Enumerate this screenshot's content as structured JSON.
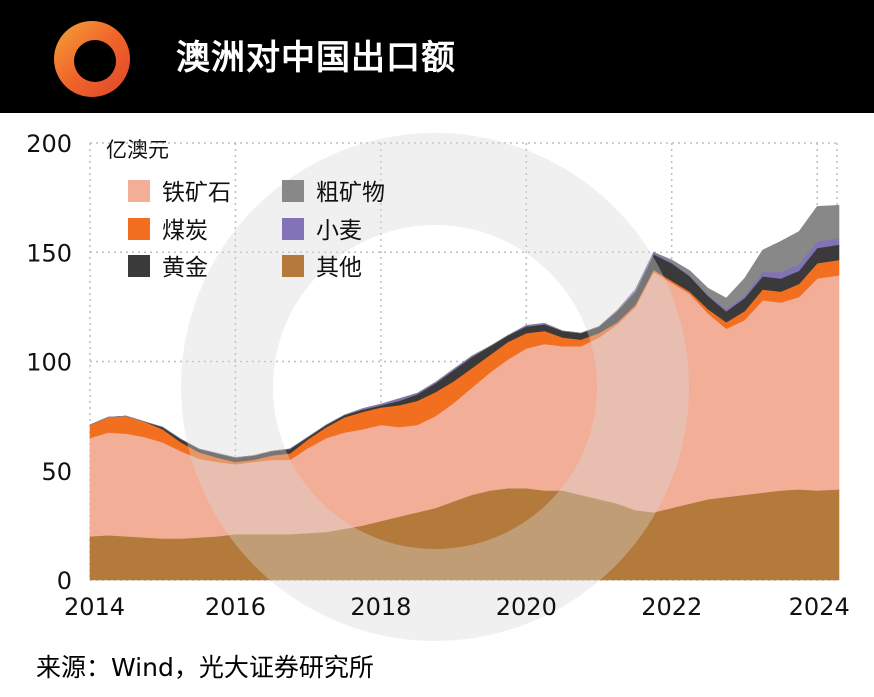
{
  "header": {
    "title": "澳洲对中国出口额",
    "logo_icon": "ring-logo-icon"
  },
  "source": "来源：Wind，光大证券研究所",
  "chart_data": {
    "type": "area",
    "stacked": true,
    "unit_label": "亿澳元",
    "x_ticks": [
      "2014",
      "2016",
      "2018",
      "2020",
      "2022",
      "2024"
    ],
    "y_ticks": [
      0,
      50,
      100,
      150,
      200
    ],
    "ylim": [
      0,
      200
    ],
    "xlim": [
      2014,
      2024.3
    ],
    "grid": true,
    "legend_position": "top-left",
    "x": [
      2014.0,
      2014.25,
      2014.5,
      2014.75,
      2015.0,
      2015.25,
      2015.5,
      2015.75,
      2016.0,
      2016.25,
      2016.5,
      2016.75,
      2017.0,
      2017.25,
      2017.5,
      2017.75,
      2018.0,
      2018.25,
      2018.5,
      2018.75,
      2019.0,
      2019.25,
      2019.5,
      2019.75,
      2020.0,
      2020.25,
      2020.5,
      2020.75,
      2021.0,
      2021.25,
      2021.5,
      2021.75,
      2022.0,
      2022.25,
      2022.5,
      2022.75,
      2023.0,
      2023.25,
      2023.5,
      2023.75,
      2024.0,
      2024.3
    ],
    "series": [
      {
        "name": "其他",
        "color": "#b37a3b",
        "values": [
          20,
          20.5,
          20,
          19.5,
          19,
          19,
          19.5,
          20,
          21,
          21,
          21,
          21,
          21.5,
          22,
          23.5,
          25,
          27,
          29,
          31,
          33,
          36,
          39,
          41,
          42,
          42,
          41,
          41,
          39,
          37,
          35,
          32,
          31,
          33,
          35,
          37,
          38,
          39,
          40,
          41,
          41.5,
          41,
          41.5
        ]
      },
      {
        "name": "铁矿石",
        "color": "#f3ae98",
        "values": [
          45,
          47,
          47,
          46,
          44,
          40,
          36,
          34,
          32,
          33,
          34,
          34,
          39,
          43,
          44,
          44,
          44,
          41,
          40,
          42,
          45,
          49,
          54,
          59,
          64,
          67,
          66,
          68,
          74,
          82,
          93,
          110,
          103,
          96,
          85,
          77,
          80,
          88,
          86,
          88,
          97,
          98
        ]
      },
      {
        "name": "煤炭",
        "color": "#f36f20",
        "values": [
          6,
          7,
          8,
          7,
          6,
          4,
          3,
          2,
          1,
          1,
          2,
          3,
          4,
          5,
          7,
          8,
          8,
          10,
          11,
          11,
          10,
          9,
          8,
          8,
          7,
          6,
          4,
          3,
          2,
          1,
          1,
          1,
          1,
          1,
          2,
          3,
          4,
          5,
          5,
          6,
          7,
          7
        ]
      },
      {
        "name": "黄金",
        "color": "#3a3a3a",
        "values": [
          0,
          0,
          0,
          0,
          1,
          1.5,
          1.5,
          2,
          2,
          2,
          2,
          2,
          1,
          1,
          1,
          1,
          1,
          2,
          3,
          4,
          5,
          5,
          4,
          3,
          3,
          3,
          3,
          3,
          3,
          5,
          6,
          7,
          8,
          7,
          6,
          5,
          6,
          6,
          6,
          6,
          7,
          7
        ]
      },
      {
        "name": "小麦",
        "color": "#8272b6",
        "values": [
          0,
          0,
          0,
          0,
          0,
          0,
          0,
          0,
          0,
          0,
          0,
          0,
          0,
          0,
          0,
          0.5,
          0.5,
          1,
          0.5,
          0.5,
          0.5,
          0.5,
          0,
          0,
          0.5,
          0.5,
          0,
          0,
          0,
          0.5,
          1,
          1,
          0.5,
          0.5,
          0.5,
          1,
          1,
          2,
          3,
          3,
          3,
          3
        ]
      },
      {
        "name": "粗矿物",
        "color": "#888888",
        "values": [
          0,
          0,
          0,
          0,
          0,
          0,
          0,
          0,
          0,
          0,
          0,
          0,
          0,
          0,
          0,
          0,
          0,
          0,
          0,
          0,
          0,
          0,
          0,
          0,
          0,
          0,
          0,
          0,
          0,
          0,
          0,
          0,
          1,
          2,
          3,
          5,
          8,
          10,
          14,
          15,
          16,
          15
        ]
      }
    ]
  }
}
